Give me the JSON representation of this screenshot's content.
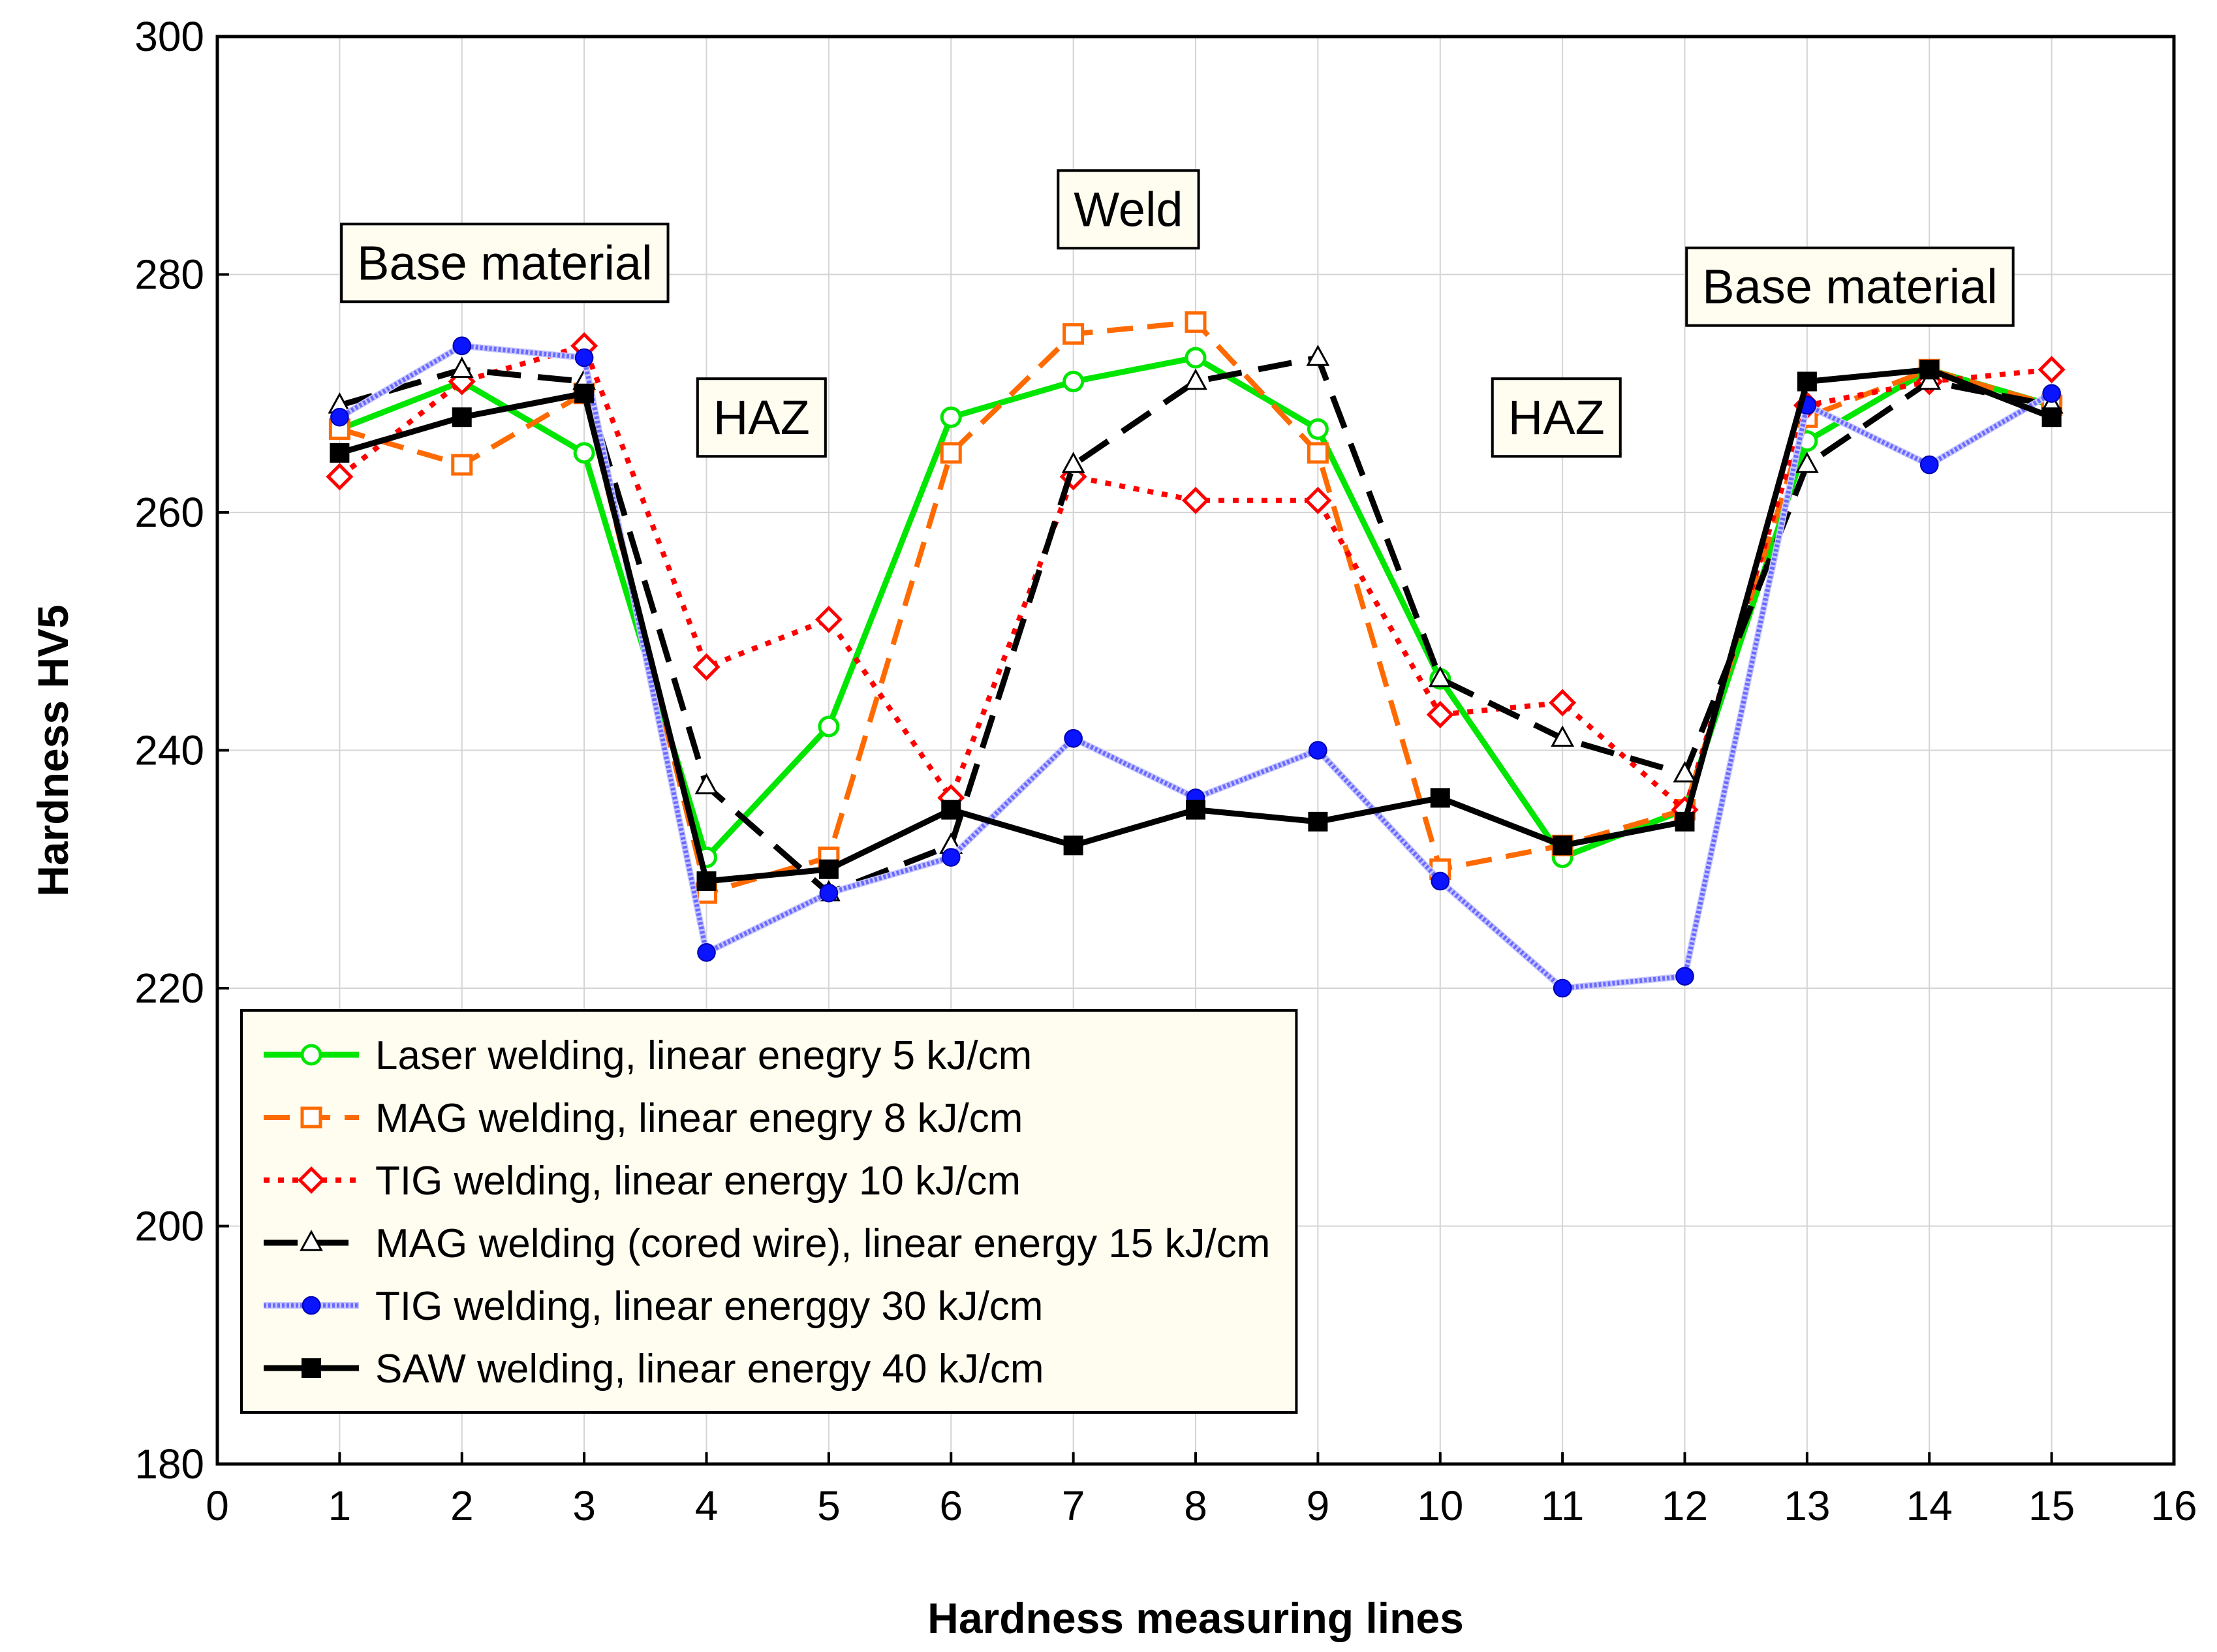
{
  "chart_data": {
    "type": "line",
    "xlabel": "Hardness measuring lines",
    "ylabel": "Hardness HV5",
    "xlim": [
      0,
      16
    ],
    "ylim": [
      180,
      300
    ],
    "xticks": [
      "0",
      "1",
      "2",
      "3",
      "4",
      "5",
      "6",
      "7",
      "8",
      "9",
      "10",
      "11",
      "12",
      "13",
      "14",
      "15",
      "16"
    ],
    "yticks": [
      "180",
      "200",
      "220",
      "240",
      "260",
      "280",
      "300"
    ],
    "grid": true,
    "legend_position": "bottom-left",
    "x": [
      1,
      2,
      3,
      4,
      5,
      6,
      7,
      8,
      9,
      10,
      11,
      12,
      13,
      14,
      15
    ],
    "annotations": [
      {
        "text": "Base material",
        "x": 2.35,
        "y": 281
      },
      {
        "text": "Weld",
        "x": 7.45,
        "y": 285.5
      },
      {
        "text": "HAZ",
        "x": 4.45,
        "y": 268
      },
      {
        "text": "HAZ",
        "x": 10.95,
        "y": 268
      },
      {
        "text": "Base material",
        "x": 13.35,
        "y": 279
      }
    ],
    "series": [
      {
        "name": "Laser welding, linear enegry 5 kJ/cm",
        "color": "#00e600",
        "marker": "circle-open",
        "dash": "solid",
        "values": [
          267,
          271,
          265,
          231,
          242,
          268,
          271,
          273,
          267,
          246,
          231,
          235,
          266,
          272,
          269
        ]
      },
      {
        "name": "MAG welding, linear enegry 8 kJ/cm",
        "color": "#ff6a00",
        "marker": "square-open",
        "dash": "dashed",
        "values": [
          267,
          264,
          270,
          228,
          231,
          265,
          275,
          276,
          265,
          230,
          232,
          235,
          268,
          272,
          269
        ]
      },
      {
        "name": "TIG welding, linear energy 10 kJ/cm",
        "color": "#ff0000",
        "marker": "diamond-open",
        "dash": "dotted",
        "values": [
          263,
          271,
          274,
          247,
          251,
          236,
          263,
          261,
          261,
          243,
          244,
          235,
          269,
          271,
          272
        ]
      },
      {
        "name": "MAG welding (cored wire), linear energy 15 kJ/cm",
        "color": "#000000",
        "marker": "triangle-open",
        "dash": "longdash",
        "values": [
          269,
          272,
          271,
          237,
          228,
          232,
          264,
          271,
          273,
          246,
          241,
          238,
          264,
          271,
          269
        ]
      },
      {
        "name": "TIG welding, linear energgy 30 kJ/cm",
        "color": "#6a6aff",
        "marker": "circle-filled-blue",
        "dash": "textured",
        "values": [
          268,
          274,
          273,
          223,
          228,
          231,
          241,
          236,
          240,
          229,
          220,
          221,
          269,
          264,
          270
        ]
      },
      {
        "name": "SAW welding, linear energy 40 kJ/cm",
        "color": "#000000",
        "marker": "square-filled",
        "dash": "solid",
        "values": [
          265,
          268,
          270,
          229,
          230,
          235,
          232,
          235,
          234,
          236,
          232,
          234,
          271,
          272,
          268
        ]
      }
    ]
  }
}
